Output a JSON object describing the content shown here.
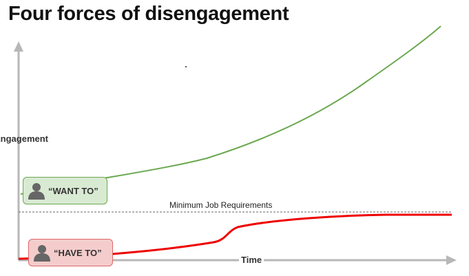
{
  "slide": {
    "title": "Four forces of disengagement"
  },
  "diagram": {
    "y_axis_label": "Engagement",
    "x_axis_label": "Time",
    "threshold_label": "Minimum Job Requirements",
    "callouts": {
      "want_to": "“WANT TO”",
      "have_to": "“HAVE TO”"
    },
    "icons": {
      "want_to_icon": "person-icon",
      "have_to_icon": "person-icon"
    },
    "colors": {
      "want_to_line": "#6aa84f",
      "have_to_line": "#ee0000",
      "axis": "#b7b7b7",
      "threshold_line": "#666666"
    }
  }
}
